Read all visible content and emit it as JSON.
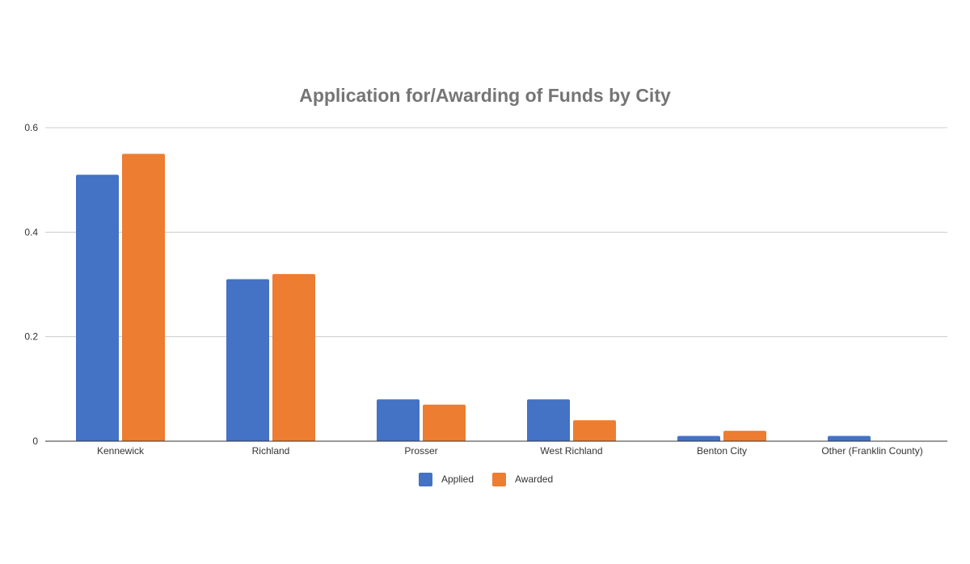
{
  "chart_data": {
    "type": "bar",
    "title": "Application for/Awarding of Funds by City",
    "xlabel": "",
    "ylabel": "",
    "categories": [
      "Kennewick",
      "Richland",
      "Prosser",
      "West Richland",
      "Benton City",
      "Other (Franklin County)"
    ],
    "series": [
      {
        "name": "Applied",
        "color": "#4472C4",
        "values": [
          0.51,
          0.31,
          0.08,
          0.08,
          0.01,
          0.01
        ]
      },
      {
        "name": "Awarded",
        "color": "#ED7D31",
        "values": [
          0.55,
          0.32,
          0.07,
          0.04,
          0.02,
          0
        ]
      }
    ],
    "ylim": [
      0,
      0.6
    ],
    "yticks": [
      "0",
      "0.2",
      "0.4",
      "0.6"
    ],
    "ytick_values": [
      0,
      0.2,
      0.4,
      0.6
    ],
    "grid": true,
    "legend_position": "bottom"
  }
}
